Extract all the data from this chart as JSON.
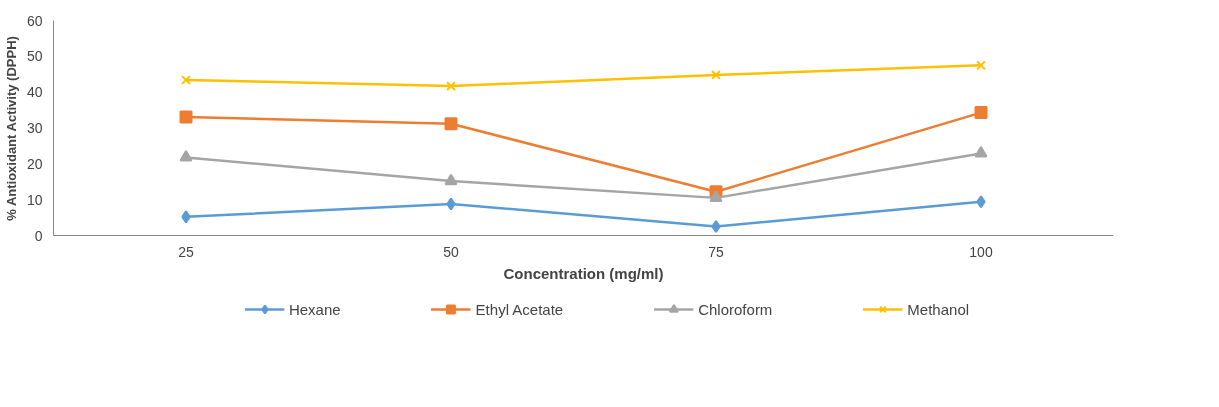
{
  "chart_data": {
    "type": "line",
    "xlabel": "Concentration (mg/ml)",
    "ylabel": "% Antioxidant Activity (DPPH)",
    "categories": [
      "25",
      "50",
      "75",
      "100"
    ],
    "ylim": [
      0,
      60
    ],
    "yticks": [
      0,
      10,
      20,
      30,
      40,
      50,
      60
    ],
    "grid": false,
    "legend": "bottom",
    "series": [
      {
        "name": "Hexane",
        "color": "#5b9bd5",
        "marker": "diamond",
        "values": [
          5.2,
          8.8,
          2.5,
          9.4
        ]
      },
      {
        "name": "Ethyl Acetate",
        "color": "#ed7d31",
        "marker": "square",
        "values": [
          33.1,
          31.2,
          12.2,
          34.3
        ]
      },
      {
        "name": "Chloroform",
        "color": "#a5a5a5",
        "marker": "triangle",
        "values": [
          21.8,
          15.2,
          10.5,
          22.9
        ]
      },
      {
        "name": "Methanol",
        "color": "#ffc000",
        "marker": "cross",
        "values": [
          43.4,
          41.7,
          44.8,
          47.5
        ]
      }
    ]
  }
}
